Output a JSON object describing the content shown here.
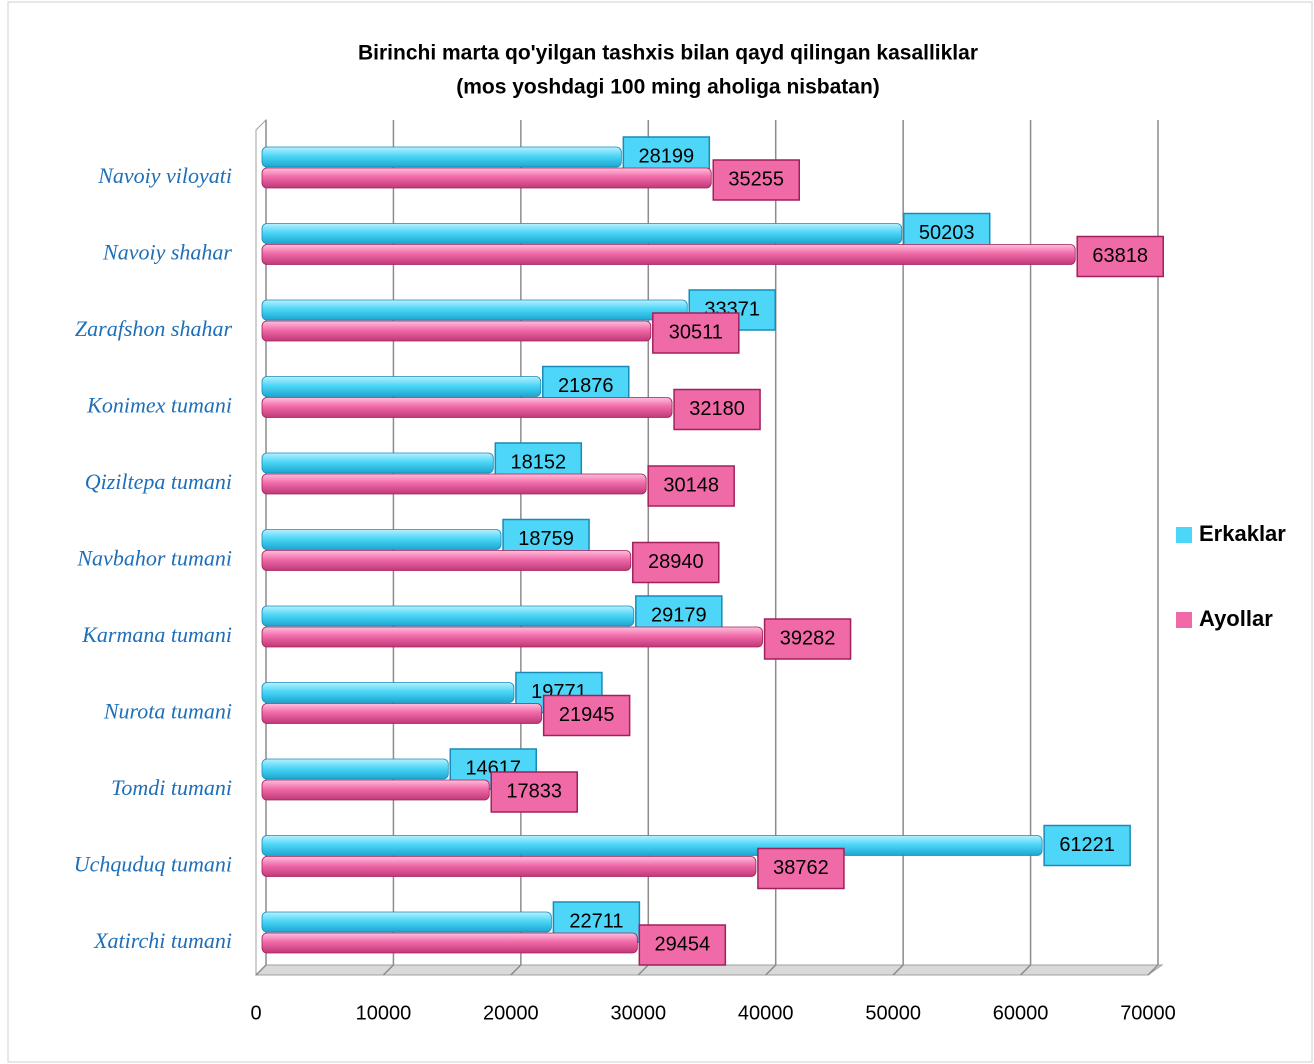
{
  "chart_data": {
    "type": "bar",
    "orientation": "horizontal",
    "title": "Birinchi marta qo'yilgan tashxis bilan qayd qilingan kasalliklar",
    "subtitle": "(mos yoshdagi 100 ming aholiga nisbatan)",
    "categories": [
      "Navoiy viloyati",
      "Navoiy shahar",
      "Zarafshon shahar",
      "Konimex tumani",
      "Qiziltepa tumani",
      "Navbahor tumani",
      "Karmana tumani",
      "Nurota tumani",
      "Tomdi tumani",
      "Uchquduq tumani",
      "Xatirchi tumani"
    ],
    "series": [
      {
        "name": "Erkaklar",
        "color": "#4dd6f7",
        "values": [
          28199,
          50203,
          33371,
          21876,
          18152,
          18759,
          29179,
          19771,
          14617,
          61221,
          22711
        ]
      },
      {
        "name": "Ayollar",
        "color": "#f06aa8",
        "values": [
          35255,
          63818,
          30511,
          32180,
          30148,
          28940,
          39282,
          21945,
          17833,
          38762,
          29454
        ]
      }
    ],
    "xlim": [
      0,
      70000
    ],
    "xticks": [
      0,
      10000,
      20000,
      30000,
      40000,
      50000,
      60000,
      70000
    ],
    "grid": true,
    "legend": "right"
  }
}
